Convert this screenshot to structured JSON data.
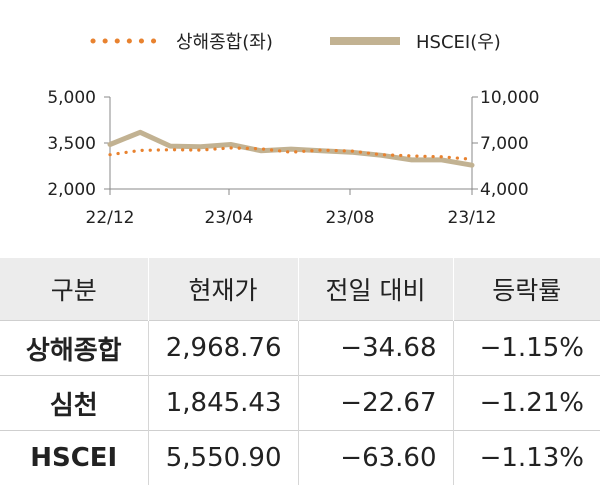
{
  "chart_data": {
    "type": "line",
    "legend": [
      "상해종합(좌)",
      "HSCEI(우)"
    ],
    "legend_position": "top",
    "x_ticks": [
      "22/12",
      "23/04",
      "23/08",
      "23/12"
    ],
    "y_left": {
      "range": [
        2000,
        5000
      ],
      "ticks": [
        "5,000",
        "3,500",
        "2,000"
      ]
    },
    "y_right": {
      "range": [
        4000,
        10000
      ],
      "ticks": [
        "10,000",
        "7,000",
        "4,000"
      ]
    },
    "series": [
      {
        "name": "상해종합(좌)",
        "axis": "left",
        "color": "#e8822f",
        "style": "dotted",
        "x": [
          "22/12",
          "23/01",
          "23/02",
          "23/03",
          "23/04",
          "23/05",
          "23/06",
          "23/07",
          "23/08",
          "23/09",
          "23/10",
          "23/11",
          "23/12"
        ],
        "values": [
          3120,
          3260,
          3280,
          3270,
          3340,
          3310,
          3200,
          3270,
          3240,
          3120,
          3080,
          3050,
          2969
        ]
      },
      {
        "name": "HSCEI(우)",
        "axis": "right",
        "color": "#c2b292",
        "style": "solid",
        "x": [
          "22/12",
          "23/01",
          "23/02",
          "23/03",
          "23/04",
          "23/05",
          "23/06",
          "23/07",
          "23/08",
          "23/09",
          "23/10",
          "23/11",
          "23/12"
        ],
        "values": [
          6900,
          7700,
          6800,
          6750,
          6900,
          6500,
          6600,
          6500,
          6400,
          6200,
          5900,
          5900,
          5551
        ]
      }
    ]
  },
  "table": {
    "headers": [
      "구분",
      "현재가",
      "전일 대비",
      "등락률"
    ],
    "rows": [
      [
        "상해종합",
        "2,968.76",
        "−34.68",
        "−1.15%"
      ],
      [
        "심천",
        "1,845.43",
        "−22.67",
        "−1.21%"
      ],
      [
        "HSCEI",
        "5,550.90",
        "−63.60",
        "−1.13%"
      ]
    ]
  }
}
